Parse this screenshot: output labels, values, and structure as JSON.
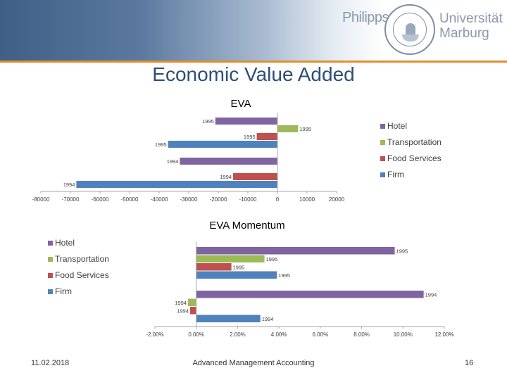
{
  "header": {
    "logo_left": "Philipps",
    "logo_right_line1": "Universität",
    "logo_right_line2": "Marburg",
    "accent_color": "#e58e2d",
    "banner_color": "#3f5f86"
  },
  "slide": {
    "title": "Economic Value Added",
    "date": "11.02.2018",
    "course": "Advanced Management Accounting",
    "page_number": "16"
  },
  "chart_data": [
    {
      "type": "bar",
      "orientation": "horizontal",
      "title": "EVA",
      "categories": [
        "1995",
        "1994"
      ],
      "series": [
        {
          "name": "Hotel",
          "color": "#8064a2",
          "values": [
            -21000,
            -33000
          ]
        },
        {
          "name": "Transportation",
          "color": "#9bbb59",
          "values": [
            7000,
            0
          ]
        },
        {
          "name": "Food Services",
          "color": "#c0504d",
          "values": [
            -7000,
            -15000
          ]
        },
        {
          "name": "Firm",
          "color": "#4f81bd",
          "values": [
            -37000,
            -68000
          ]
        }
      ],
      "xlim": [
        -80000,
        20000
      ],
      "xticks": [
        "-80000",
        "-70000",
        "-60000",
        "-50000",
        "-40000",
        "-30000",
        "-20000",
        "-10000",
        "0",
        "10000",
        "20000"
      ],
      "legend": "right",
      "grid": false
    },
    {
      "type": "bar",
      "orientation": "horizontal",
      "title": "EVA Momentum",
      "categories": [
        "1995",
        "1994"
      ],
      "series": [
        {
          "name": "Hotel",
          "color": "#8064a2",
          "values": [
            9.6,
            11.0
          ]
        },
        {
          "name": "Transportation",
          "color": "#9bbb59",
          "values": [
            3.3,
            -0.4
          ]
        },
        {
          "name": "Food Services",
          "color": "#c0504d",
          "values": [
            1.7,
            -0.3
          ]
        },
        {
          "name": "Firm",
          "color": "#4f81bd",
          "values": [
            3.9,
            3.1
          ]
        }
      ],
      "xlim": [
        -2,
        12
      ],
      "xticks": [
        "-2.00%",
        "0.00%",
        "2.00%",
        "4.00%",
        "6.00%",
        "8.00%",
        "10.00%",
        "12.00%"
      ],
      "legend": "top-left",
      "grid": false
    }
  ]
}
